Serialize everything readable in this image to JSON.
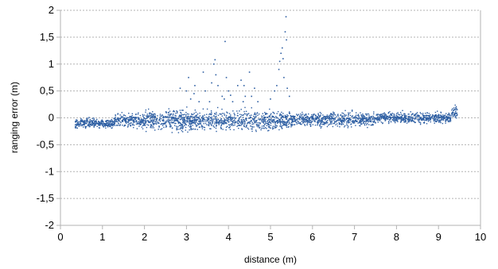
{
  "chart_data": {
    "type": "scatter",
    "xlabel": "distance (m)",
    "ylabel": "ranging error (m)",
    "xlim": [
      0,
      10
    ],
    "ylim": [
      -2,
      2
    ],
    "x_ticks": [
      0,
      1,
      2,
      3,
      4,
      5,
      6,
      7,
      8,
      9,
      10
    ],
    "x_tick_labels": [
      "0",
      "1",
      "2",
      "3",
      "4",
      "5",
      "6",
      "7",
      "8",
      "9",
      "10"
    ],
    "y_ticks": [
      -2,
      -1.5,
      -1,
      -0.5,
      0,
      0.5,
      1,
      1.5,
      2
    ],
    "y_tick_labels": [
      "-2",
      "-1,5",
      "-1",
      "-0,5",
      "0",
      "0,5",
      "1",
      "1,5",
      "2"
    ],
    "grid": "horizontal-dashed",
    "legend": "none",
    "series": [
      {
        "color": "#2e5fa3",
        "x_range": [
          0.35,
          9.45
        ],
        "dense_band": {
          "segments": [
            {
              "x": [
                0.35,
                1.3
              ],
              "center": -0.1,
              "spread": 0.08
            },
            {
              "x": [
                1.3,
                2.0
              ],
              "center": -0.05,
              "spread": 0.12
            },
            {
              "x": [
                2.0,
                5.5
              ],
              "center": -0.05,
              "spread": 0.17
            },
            {
              "x": [
                5.5,
                7.5
              ],
              "center": -0.03,
              "spread": 0.12
            },
            {
              "x": [
                7.5,
                9.3
              ],
              "center": 0.0,
              "spread": 0.09
            },
            {
              "x": [
                9.3,
                9.45
              ],
              "center": 0.1,
              "spread": 0.12
            }
          ]
        },
        "outliers": [
          {
            "x": 3.0,
            "y": 0.5
          },
          {
            "x": 3.1,
            "y": 0.35
          },
          {
            "x": 3.3,
            "y": 0.3
          },
          {
            "x": 3.4,
            "y": 0.85
          },
          {
            "x": 3.45,
            "y": 0.5
          },
          {
            "x": 3.55,
            "y": 0.3
          },
          {
            "x": 3.65,
            "y": 1.0
          },
          {
            "x": 3.68,
            "y": 1.08
          },
          {
            "x": 3.7,
            "y": 0.8
          },
          {
            "x": 3.75,
            "y": 0.6
          },
          {
            "x": 3.85,
            "y": 0.4
          },
          {
            "x": 3.9,
            "y": 0.35
          },
          {
            "x": 3.95,
            "y": 0.75
          },
          {
            "x": 4.0,
            "y": 0.5
          },
          {
            "x": 4.1,
            "y": 0.3
          },
          {
            "x": 4.3,
            "y": 0.7
          },
          {
            "x": 4.35,
            "y": 0.3
          },
          {
            "x": 4.4,
            "y": 0.4
          },
          {
            "x": 4.5,
            "y": 0.85
          },
          {
            "x": 4.55,
            "y": 0.4
          },
          {
            "x": 4.7,
            "y": 0.3
          },
          {
            "x": 5.0,
            "y": 0.35
          },
          {
            "x": 5.1,
            "y": 0.5
          },
          {
            "x": 5.15,
            "y": 0.6
          },
          {
            "x": 5.2,
            "y": 0.9
          },
          {
            "x": 5.22,
            "y": 1.05
          },
          {
            "x": 5.25,
            "y": 1.2
          },
          {
            "x": 5.28,
            "y": 1.3
          },
          {
            "x": 5.3,
            "y": 1.1
          },
          {
            "x": 5.32,
            "y": 0.75
          },
          {
            "x": 5.35,
            "y": 1.6
          },
          {
            "x": 5.37,
            "y": 1.88
          },
          {
            "x": 5.38,
            "y": 1.45
          },
          {
            "x": 5.4,
            "y": 0.55
          },
          {
            "x": 5.45,
            "y": 0.4
          },
          {
            "x": 3.05,
            "y": 0.75
          },
          {
            "x": 2.85,
            "y": 0.55
          },
          {
            "x": 3.18,
            "y": 0.45
          },
          {
            "x": 3.6,
            "y": 0.65
          },
          {
            "x": 4.05,
            "y": 0.42
          },
          {
            "x": 3.2,
            "y": 0.6
          },
          {
            "x": 4.22,
            "y": 0.6
          },
          {
            "x": 4.62,
            "y": 0.55
          },
          {
            "x": 3.92,
            "y": 1.42
          },
          {
            "x": 4.37,
            "y": 0.6
          }
        ]
      }
    ]
  }
}
